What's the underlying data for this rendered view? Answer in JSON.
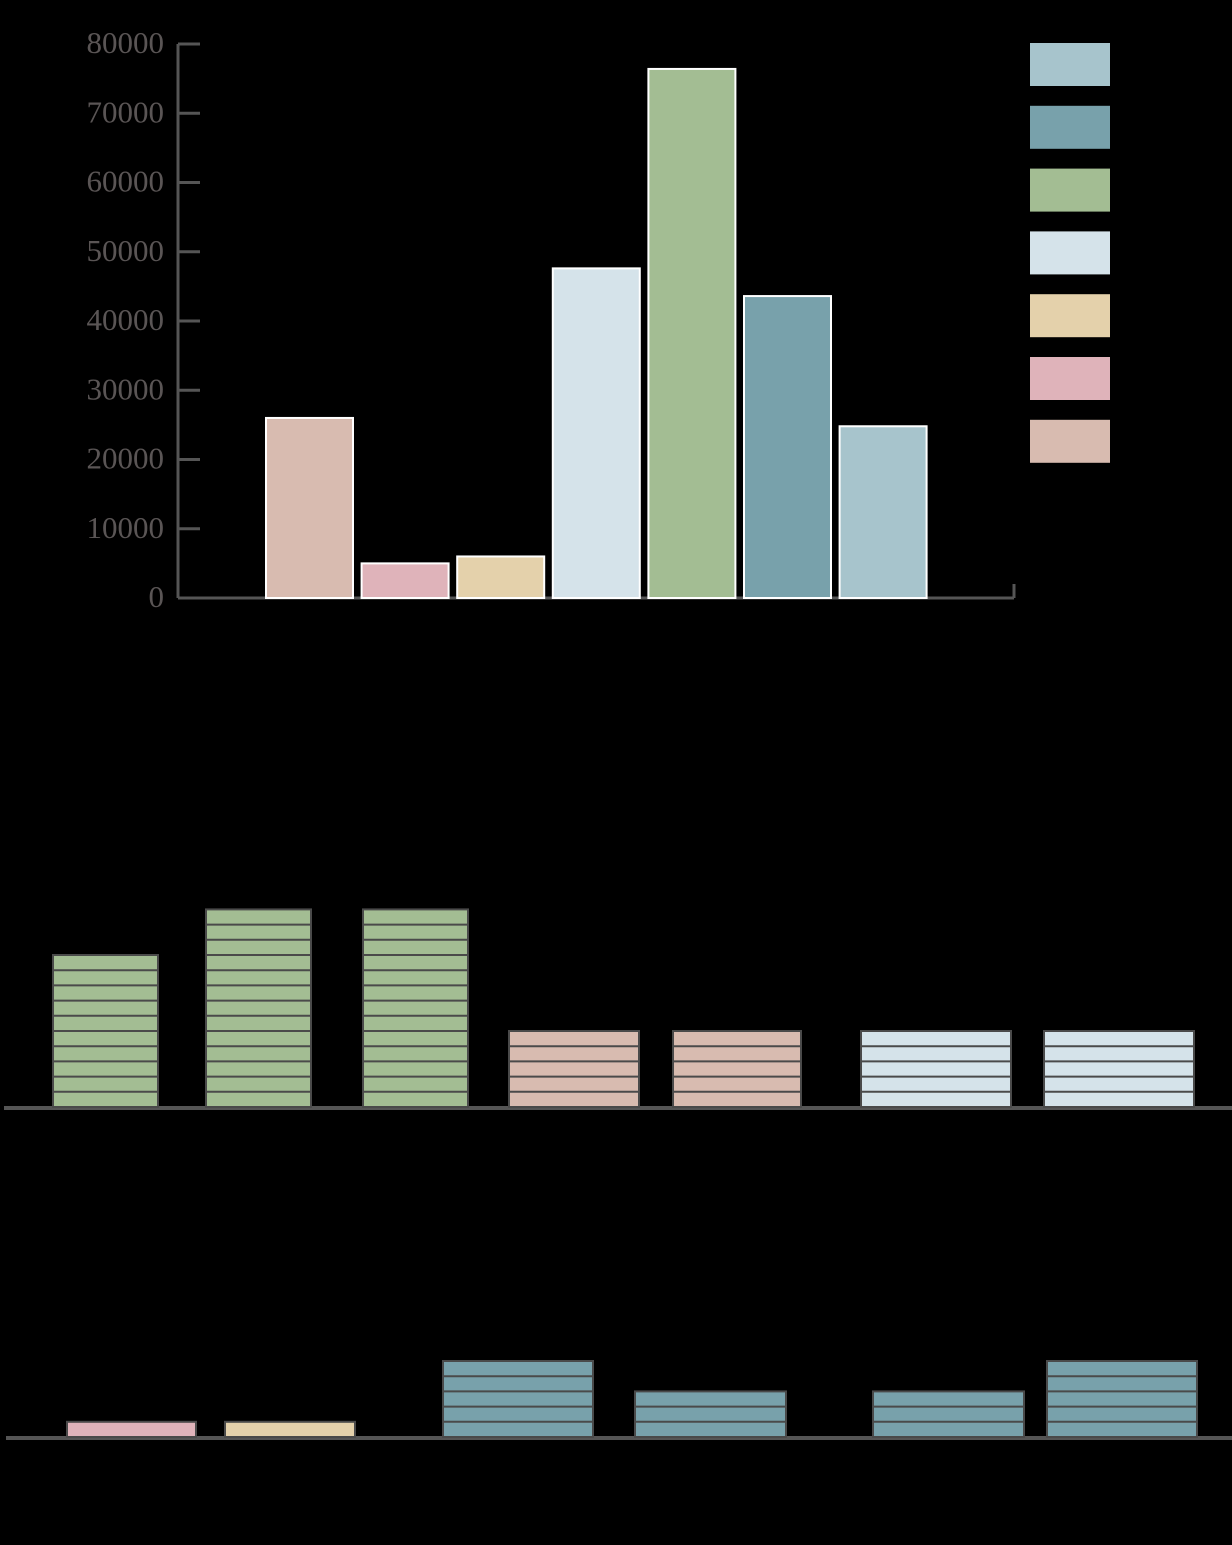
{
  "chart_data": [
    {
      "type": "bar",
      "categories": [
        null,
        null,
        null,
        null,
        null,
        null,
        null
      ],
      "values": [
        26000,
        5000,
        6000,
        47600,
        76400,
        43600,
        24800
      ],
      "colors": [
        "#d8bbb0",
        "#dfb3ba",
        "#e4d1ab",
        "#d5e3ea",
        "#a3bd93",
        "#78a1ab",
        "#a7c4cc"
      ],
      "ylim": [
        0,
        80000
      ],
      "yticks": [
        0,
        10000,
        20000,
        30000,
        40000,
        50000,
        60000,
        70000,
        80000
      ]
    },
    {
      "type": "pictogram",
      "values": [
        10,
        13,
        13,
        5,
        5,
        5,
        5
      ],
      "colors": [
        "#a3bd93",
        "#a3bd93",
        "#a3bd93",
        "#d8bbb0",
        "#d8bbb0",
        "#d5e3ea",
        "#d5e3ea"
      ]
    },
    {
      "type": "pictogram",
      "values": [
        1,
        1,
        5,
        3,
        3,
        5
      ],
      "colors": [
        "#dfb3ba",
        "#e4d1ab",
        "#78a1ab",
        "#78a1ab",
        "#78a1ab",
        "#78a1ab"
      ]
    }
  ]
}
